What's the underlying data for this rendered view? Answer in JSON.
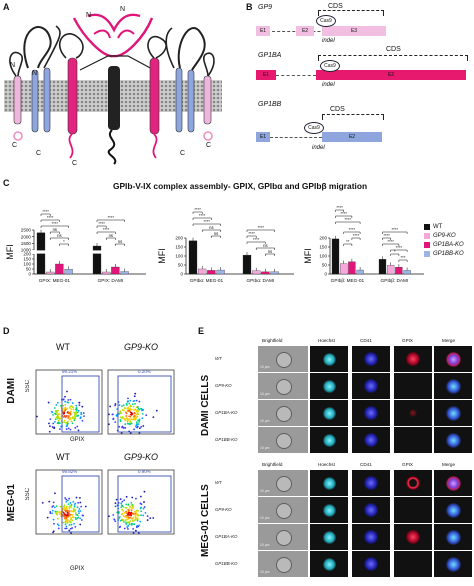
{
  "panels": {
    "a": "A",
    "b": "B",
    "c": "C",
    "d": "D",
    "e": "E"
  },
  "panelA": {
    "labels": {
      "n1": "N",
      "n2": "N",
      "n3": "N",
      "n4": "N",
      "c1": "C",
      "c2": "C",
      "c3": "C",
      "c4": "C",
      "c5": "C"
    }
  },
  "panelB": {
    "genes": [
      {
        "name": "GP9",
        "cds": "CDS",
        "exons": [
          "E1",
          "E2",
          "E3"
        ],
        "cas9": "Cas9",
        "indel": "indel"
      },
      {
        "name": "GP1BA",
        "cds": "CDS",
        "exons": [
          "E1",
          "E2"
        ],
        "cas9": "Cas9",
        "indel": "indel"
      },
      {
        "name": "GP1BB",
        "cds": "CDS",
        "exons": [
          "E1",
          "E2"
        ],
        "cas9": "Cas9",
        "indel": "indel"
      }
    ]
  },
  "panelC": {
    "title": "GPIb-V-IX complex assembly- GPIX, GPIbα and GPIbβ migration",
    "legend": [
      "WT",
      "GP9-KO",
      "GP1BA-KO",
      "GP1BB-KO"
    ],
    "colors": {
      "WT": "#111111",
      "GP9-KO": "#f4a8dc",
      "GP1BA-KO": "#e0157a",
      "GP1BB-KO": "#9db4e6"
    },
    "stars": "****",
    "stars3": "***",
    "stars1": "*",
    "stars2": "**",
    "ns": "ns"
  },
  "chart_data": [
    {
      "type": "bar",
      "ylabel": "MFI",
      "categories": [
        "GPIX: MEG-01",
        "GPIX: DAMI"
      ],
      "yticks": [
        "0",
        "50",
        "100",
        "150",
        "200",
        "1000",
        "1500",
        "2000",
        "2500"
      ],
      "series": [
        {
          "name": "WT",
          "values": [
            2300,
            1300
          ]
        },
        {
          "name": "GP9-KO",
          "values": [
            20,
            20
          ]
        },
        {
          "name": "GP1BA-KO",
          "values": [
            100,
            70
          ]
        },
        {
          "name": "GP1BB-KO",
          "values": [
            48,
            25
          ]
        }
      ]
    },
    {
      "type": "bar",
      "ylabel": "MFI",
      "categories": [
        "GPIbα: MEG-01",
        "GPIbα: DAMI"
      ],
      "yticks": [
        "0",
        "50",
        "100",
        "150",
        "200"
      ],
      "ylim": [
        0,
        200
      ],
      "series": [
        {
          "name": "WT",
          "values": [
            185,
            105
          ]
        },
        {
          "name": "GP9-KO",
          "values": [
            28,
            18
          ]
        },
        {
          "name": "GP1BA-KO",
          "values": [
            20,
            12
          ]
        },
        {
          "name": "GP1BB-KO",
          "values": [
            22,
            12
          ]
        }
      ]
    },
    {
      "type": "bar",
      "ylabel": "MFI",
      "categories": [
        "GPIbβ: MEG-01",
        "GPIbβ: DAMI"
      ],
      "yticks": [
        "0",
        "50",
        "100",
        "150",
        "200"
      ],
      "ylim": [
        0,
        200
      ],
      "series": [
        {
          "name": "WT",
          "values": [
            195,
            82
          ]
        },
        {
          "name": "GP9-KO",
          "values": [
            58,
            48
          ]
        },
        {
          "name": "GP1BA-KO",
          "values": [
            68,
            38
          ]
        },
        {
          "name": "GP1BB-KO",
          "values": [
            22,
            20
          ]
        }
      ]
    }
  ],
  "panelD": {
    "rows": [
      {
        "name": "DAMI",
        "plots": [
          {
            "title": "WT",
            "pct": "99.21%"
          },
          {
            "title": "GP9-KO",
            "pct": "0.20%"
          }
        ]
      },
      {
        "name": "MEG-01",
        "plots": [
          {
            "title": "WT",
            "pct": "99.82%"
          },
          {
            "title": "GP9-KO",
            "pct": "0.90%"
          }
        ]
      }
    ],
    "ylabel": "SSC",
    "xlabel": "GPIX"
  },
  "panelE": {
    "blocks": [
      {
        "title": "DAMI CELLS",
        "headers": [
          "Brightfield",
          "Hoechst",
          "CD41",
          "GPIX",
          "Merge"
        ],
        "rows": [
          "WT",
          "GP9-KO",
          "GP1BA-KO",
          "GP1BB-KO"
        ],
        "scale": "10 μm"
      },
      {
        "title": "MEG-01 CELLS",
        "headers": [
          "Brightfield",
          "Hoechst",
          "CD41",
          "GPIX",
          "Merge"
        ],
        "rows": [
          "WT",
          "GP9-KO",
          "GP1BA-KO",
          "GP1BB-KO"
        ],
        "scale": "10 μm"
      }
    ]
  }
}
